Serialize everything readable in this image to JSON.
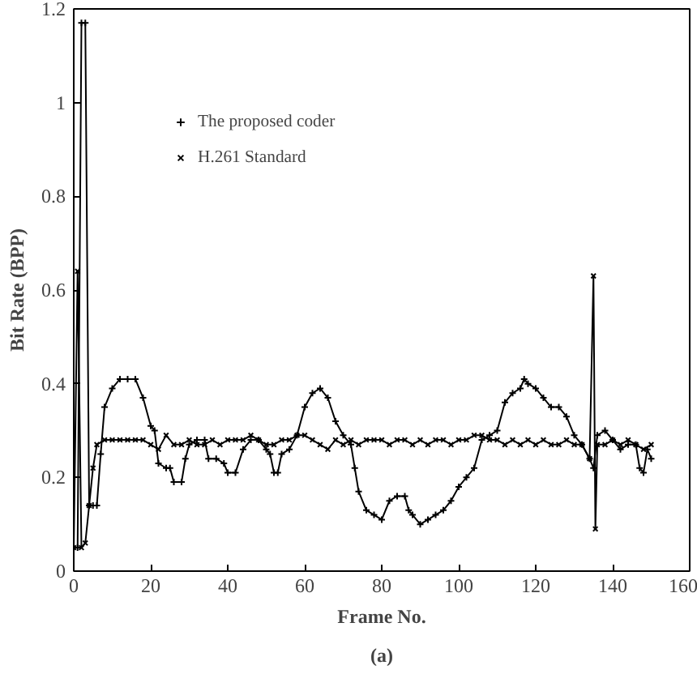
{
  "chart_data": {
    "type": "line",
    "xlabel": "Frame No.",
    "ylabel": "Bit Rate (BPP)",
    "annotations": [
      "(a)"
    ],
    "xlim": [
      0,
      160
    ],
    "ylim": [
      0,
      1.2
    ],
    "xticks": [
      0,
      20,
      40,
      60,
      80,
      100,
      120,
      140,
      160
    ],
    "yticks": [
      0,
      0.2,
      0.4,
      0.6,
      0.8,
      1,
      1.2
    ],
    "grid": false,
    "legend": "top left",
    "line_style": "solid",
    "series": [
      {
        "name": "The proposed coder",
        "color": "#000000",
        "marker": "cross",
        "x": [
          1,
          2,
          3,
          4,
          5,
          6,
          7,
          8,
          10,
          12,
          14,
          16,
          18,
          20,
          21,
          22,
          24,
          25,
          26,
          28,
          29,
          30,
          32,
          34,
          35,
          37,
          39,
          40,
          42,
          44,
          46,
          48,
          50,
          51,
          52,
          53,
          54,
          56,
          58,
          60,
          62,
          64,
          66,
          68,
          70,
          72,
          73,
          74,
          76,
          78,
          80,
          82,
          84,
          86,
          87,
          88,
          90,
          92,
          94,
          96,
          98,
          100,
          102,
          104,
          106,
          108,
          110,
          112,
          114,
          116,
          117,
          118,
          120,
          122,
          124,
          126,
          128,
          130,
          132,
          134,
          135,
          136,
          138,
          140,
          142,
          144,
          146,
          147,
          148,
          149,
          150
        ],
        "values": [
          0.05,
          1.17,
          1.17,
          0.14,
          0.14,
          0.14,
          0.25,
          0.35,
          0.39,
          0.41,
          0.41,
          0.41,
          0.37,
          0.31,
          0.3,
          0.23,
          0.22,
          0.22,
          0.19,
          0.19,
          0.24,
          0.27,
          0.28,
          0.28,
          0.24,
          0.24,
          0.23,
          0.21,
          0.21,
          0.26,
          0.28,
          0.28,
          0.26,
          0.25,
          0.21,
          0.21,
          0.25,
          0.26,
          0.29,
          0.35,
          0.38,
          0.39,
          0.37,
          0.32,
          0.29,
          0.27,
          0.22,
          0.17,
          0.13,
          0.12,
          0.11,
          0.15,
          0.16,
          0.16,
          0.13,
          0.12,
          0.1,
          0.11,
          0.12,
          0.13,
          0.15,
          0.18,
          0.2,
          0.22,
          0.28,
          0.29,
          0.3,
          0.36,
          0.38,
          0.39,
          0.41,
          0.4,
          0.39,
          0.37,
          0.35,
          0.35,
          0.33,
          0.29,
          0.27,
          0.24,
          0.22,
          0.29,
          0.3,
          0.28,
          0.26,
          0.27,
          0.27,
          0.22,
          0.21,
          0.26,
          0.24
        ]
      },
      {
        "name": "H.261 Standard",
        "color": "#000000",
        "marker": "x",
        "x": [
          0,
          1,
          2,
          3,
          4,
          5,
          6,
          8,
          10,
          12,
          14,
          16,
          18,
          20,
          22,
          24,
          26,
          28,
          30,
          32,
          34,
          36,
          38,
          40,
          42,
          44,
          46,
          48,
          50,
          52,
          54,
          56,
          58,
          60,
          62,
          64,
          66,
          68,
          70,
          72,
          74,
          76,
          78,
          80,
          82,
          84,
          86,
          88,
          90,
          92,
          94,
          96,
          98,
          100,
          102,
          104,
          106,
          108,
          110,
          112,
          114,
          116,
          118,
          120,
          122,
          124,
          126,
          128,
          130,
          132,
          134,
          135,
          135.5,
          136,
          138,
          140,
          142,
          144,
          146,
          148,
          150
        ],
        "values": [
          0.05,
          0.64,
          0.05,
          0.06,
          0.14,
          0.22,
          0.27,
          0.28,
          0.28,
          0.28,
          0.28,
          0.28,
          0.28,
          0.27,
          0.26,
          0.29,
          0.27,
          0.27,
          0.28,
          0.27,
          0.27,
          0.28,
          0.27,
          0.28,
          0.28,
          0.28,
          0.29,
          0.28,
          0.27,
          0.27,
          0.28,
          0.28,
          0.29,
          0.29,
          0.28,
          0.27,
          0.26,
          0.28,
          0.27,
          0.28,
          0.27,
          0.28,
          0.28,
          0.28,
          0.27,
          0.28,
          0.28,
          0.27,
          0.28,
          0.27,
          0.28,
          0.28,
          0.27,
          0.28,
          0.28,
          0.29,
          0.29,
          0.28,
          0.28,
          0.27,
          0.28,
          0.27,
          0.28,
          0.27,
          0.28,
          0.27,
          0.27,
          0.28,
          0.27,
          0.27,
          0.24,
          0.63,
          0.09,
          0.27,
          0.27,
          0.28,
          0.27,
          0.28,
          0.27,
          0.26,
          0.27
        ]
      }
    ]
  }
}
